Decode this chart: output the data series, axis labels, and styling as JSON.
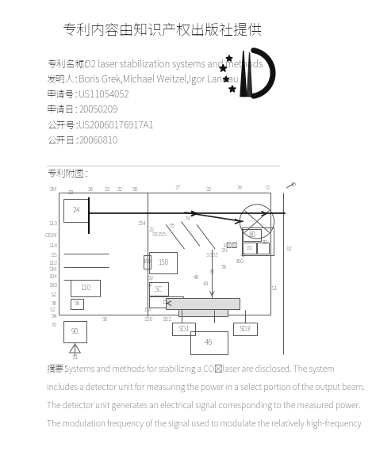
{
  "title": "专利内容由知识产权出版社提供",
  "patent_name_label": "专利名称：",
  "patent_name": "CO2 laser stabilization systems and methods",
  "inventor_label": "发明人：",
  "inventor": "Boris Grek,Michael Weitzel,Igor Landau",
  "app_no_label": "申请号：",
  "app_no": "US11054052",
  "app_date_label": "申请日：",
  "app_date": "20050209",
  "pub_no_label": "公开号：",
  "pub_no": "US20060176917A1",
  "pub_date_label": "公开日：",
  "pub_date": "20060810",
  "diagram_label": "专利附图：",
  "abstract_label": "摘要：",
  "abstract_lines": [
    "Systems and methods for stabilizing a CO₂laser are disclosed. The system",
    "includes a detector unit for measuring the power in a select portion of the output beam.",
    "The detector unit generates an electrical signal corresponding to the measured power.",
    "The modulation frequency of the signal used to modulate the relatively high-frequency"
  ],
  "bg_color": "#ffffff",
  "title_fontsize": 13,
  "info_fontsize": 8.5,
  "diagram_color": "#555555",
  "abstract_color": "#666666"
}
